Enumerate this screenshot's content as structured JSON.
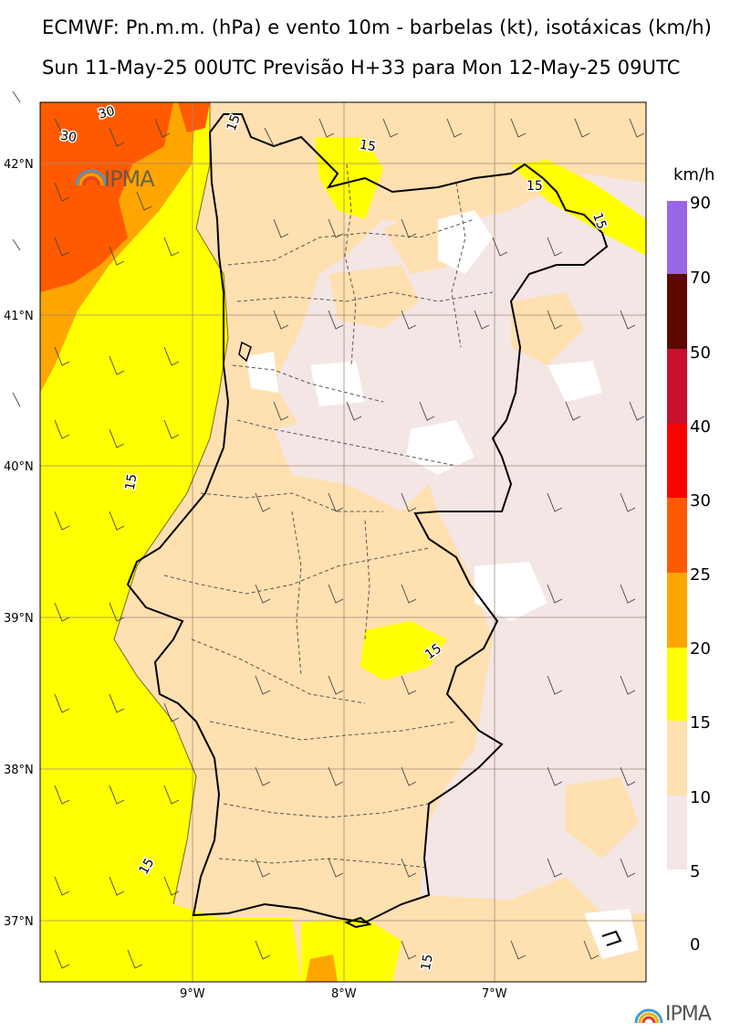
{
  "header": {
    "title": "ECMWF: Pn.m.m. (hPa) e vento 10m - barbelas (kt), isotáxicas (km/h)",
    "subtitle": "Sun 11-May-25 00UTC Previsão H+33 para Mon 12-May-25 09UTC"
  },
  "map": {
    "lat_labels": [
      "42°N",
      "41°N",
      "40°N",
      "39°N",
      "38°N",
      "37°N"
    ],
    "lon_labels": [
      "9°W",
      "8°W",
      "7°W"
    ],
    "contour_labels": [
      "30",
      "30",
      "15",
      "15",
      "15",
      "15",
      "15",
      "15",
      "15",
      "15"
    ],
    "logo_text": "IPMA"
  },
  "colorbar": {
    "unit": "km/h",
    "ticks": [
      "90",
      "70",
      "50",
      "40",
      "30",
      "25",
      "20",
      "15",
      "10",
      "5",
      "0"
    ],
    "colors": [
      "#9966e6",
      "#5c0a00",
      "#c8102e",
      "#ff0000",
      "#ff5a00",
      "#ffa500",
      "#ffff00",
      "#ffe0b0",
      "#f3e6e4",
      "#ffffff"
    ]
  },
  "footer": {
    "logo_text": "IPMA"
  }
}
